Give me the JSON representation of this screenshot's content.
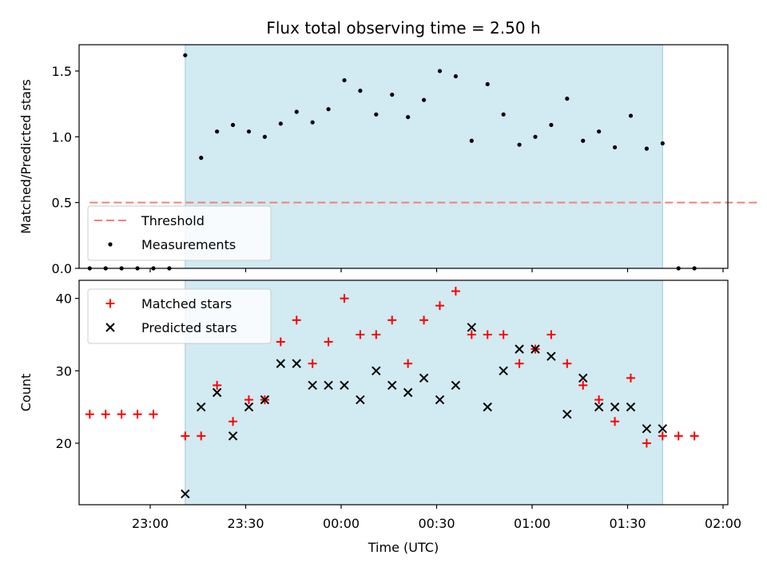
{
  "chart_data": {
    "type": "scatter",
    "title": "Flux total observing time = 2.50 h",
    "xlabel": "Time (UTC)",
    "x_ticks": [
      "23:00",
      "23:30",
      "00:00",
      "00:30",
      "01:00",
      "01:30",
      "02:00"
    ],
    "shaded_window": {
      "start": "23:11",
      "end": "01:41",
      "color": "#add8e6"
    },
    "panels": [
      {
        "name": "ratio",
        "ylabel": "Matched/Predicted stars",
        "ylim": [
          0,
          1.7
        ],
        "y_ticks": [
          "0.0",
          "0.5",
          "1.0",
          "1.5"
        ],
        "legend": {
          "position": "lower-left",
          "entries": [
            "Threshold",
            "Measurements"
          ]
        },
        "series": [
          {
            "name": "Threshold",
            "style": "dashed-line",
            "color": "#f08080",
            "x": [
              "22:41",
              "02:11"
            ],
            "values": [
              0.5,
              0.5
            ]
          },
          {
            "name": "Measurements",
            "style": "dot",
            "color": "#000000",
            "x": [
              "22:41",
              "22:46",
              "22:51",
              "22:56",
              "23:01",
              "23:06",
              "23:11",
              "23:16",
              "23:21",
              "23:26",
              "23:31",
              "23:36",
              "23:41",
              "23:46",
              "23:51",
              "23:56",
              "00:01",
              "00:06",
              "00:11",
              "00:16",
              "00:21",
              "00:26",
              "00:31",
              "00:36",
              "00:41",
              "00:46",
              "00:51",
              "00:56",
              "01:01",
              "01:06",
              "01:11",
              "01:16",
              "01:21",
              "01:26",
              "01:31",
              "01:36",
              "01:41",
              "01:46",
              "01:51"
            ],
            "values": [
              0,
              0,
              0,
              0,
              0,
              0,
              1.62,
              0.84,
              1.04,
              1.09,
              1.04,
              1.0,
              1.1,
              1.19,
              1.11,
              1.21,
              1.43,
              1.35,
              1.17,
              1.32,
              1.15,
              1.28,
              1.5,
              1.46,
              0.97,
              1.4,
              1.17,
              0.94,
              1.0,
              1.09,
              1.29,
              0.97,
              1.04,
              0.92,
              1.16,
              0.91,
              0.95,
              0,
              0
            ]
          }
        ]
      },
      {
        "name": "count",
        "ylabel": "Count",
        "ylim": [
          11.5,
          42.5
        ],
        "y_ticks": [
          "20",
          "30",
          "40"
        ],
        "legend": {
          "position": "upper-left",
          "entries": [
            "Matched stars",
            "Predicted stars"
          ]
        },
        "series": [
          {
            "name": "Matched stars",
            "style": "plus",
            "color": "#ff0000",
            "x": [
              "22:41",
              "22:46",
              "22:51",
              "22:56",
              "23:01",
              "23:11",
              "23:16",
              "23:21",
              "23:26",
              "23:31",
              "23:36",
              "23:41",
              "23:46",
              "23:51",
              "23:56",
              "00:01",
              "00:06",
              "00:11",
              "00:16",
              "00:21",
              "00:26",
              "00:31",
              "00:36",
              "00:41",
              "00:46",
              "00:51",
              "00:56",
              "01:01",
              "01:06",
              "01:11",
              "01:16",
              "01:21",
              "01:26",
              "01:31",
              "01:36",
              "01:41",
              "01:46",
              "01:51"
            ],
            "values": [
              24,
              24,
              24,
              24,
              24,
              21,
              21,
              28,
              23,
              26,
              26,
              34,
              37,
              31,
              34,
              40,
              35,
              35,
              37,
              31,
              37,
              39,
              41,
              35,
              35,
              35,
              31,
              33,
              35,
              31,
              28,
              26,
              23,
              29,
              20,
              21,
              21,
              21
            ]
          },
          {
            "name": "Predicted stars",
            "style": "x",
            "color": "#000000",
            "x": [
              "23:11",
              "23:16",
              "23:21",
              "23:26",
              "23:31",
              "23:36",
              "23:41",
              "23:46",
              "23:51",
              "23:56",
              "00:01",
              "00:06",
              "00:11",
              "00:16",
              "00:21",
              "00:26",
              "00:31",
              "00:36",
              "00:41",
              "00:46",
              "00:51",
              "00:56",
              "01:01",
              "01:06",
              "01:11",
              "01:16",
              "01:21",
              "01:26",
              "01:31",
              "01:36",
              "01:41"
            ],
            "values": [
              13,
              25,
              27,
              21,
              25,
              26,
              31,
              31,
              28,
              28,
              28,
              26,
              30,
              28,
              27,
              29,
              26,
              28,
              36,
              25,
              30,
              33,
              33,
              32,
              24,
              29,
              25,
              25,
              25,
              22,
              22
            ]
          }
        ]
      }
    ]
  }
}
